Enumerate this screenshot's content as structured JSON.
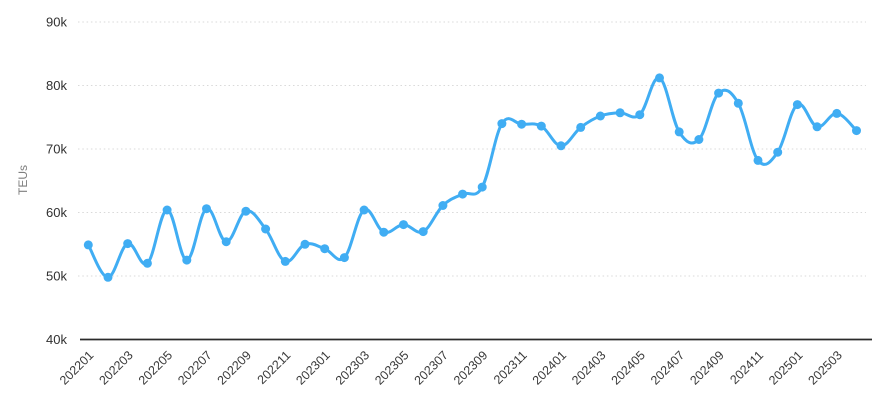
{
  "chart_data": {
    "type": "line",
    "title": "",
    "xlabel": "",
    "ylabel": "TEUs",
    "legend": "none",
    "grid": "horizontal-dotted",
    "marker": "circle",
    "smooth": true,
    "ylim": [
      40000,
      90000
    ],
    "ytick_labels": [
      "40k",
      "50k",
      "60k",
      "70k",
      "80k",
      "90k"
    ],
    "x": [
      "202201",
      "202202",
      "202203",
      "202204",
      "202205",
      "202206",
      "202207",
      "202208",
      "202209",
      "202210",
      "202211",
      "202212",
      "202301",
      "202302",
      "202303",
      "202304",
      "202305",
      "202306",
      "202307",
      "202308",
      "202309",
      "202310",
      "202311",
      "202312",
      "202401",
      "202402",
      "202403",
      "202404",
      "202405",
      "202406",
      "202407",
      "202408",
      "202409",
      "202410",
      "202411",
      "202412",
      "202501",
      "202502",
      "202503",
      "202504"
    ],
    "x_tick_labels": [
      "202201",
      "202203",
      "202205",
      "202207",
      "202209",
      "202211",
      "202301",
      "202303",
      "202305",
      "202307",
      "202309",
      "202311",
      "202401",
      "202403",
      "202405",
      "202407",
      "202409",
      "202411",
      "202501",
      "202503"
    ],
    "values": [
      54900,
      49800,
      55100,
      52000,
      60400,
      52500,
      60600,
      55400,
      60200,
      57400,
      52300,
      55000,
      54300,
      52900,
      60400,
      56900,
      58100,
      57000,
      61100,
      62900,
      64000,
      74000,
      73900,
      73600,
      70500,
      73400,
      75200,
      75700,
      75400,
      81200,
      72700,
      71500,
      78800,
      77200,
      68200,
      69500,
      77000,
      73500,
      75600,
      72900
    ]
  },
  "style": {
    "line_color": "#40ADF3",
    "marker_color": "#40ADF3",
    "grid_color": "#d9d9d9",
    "axis_line_color": "#2b2b2b",
    "y_tick_color": "#303030",
    "x_tick_color": "#3a3a3a",
    "y_title_color": "#7f7f7f",
    "background": "#ffffff"
  }
}
